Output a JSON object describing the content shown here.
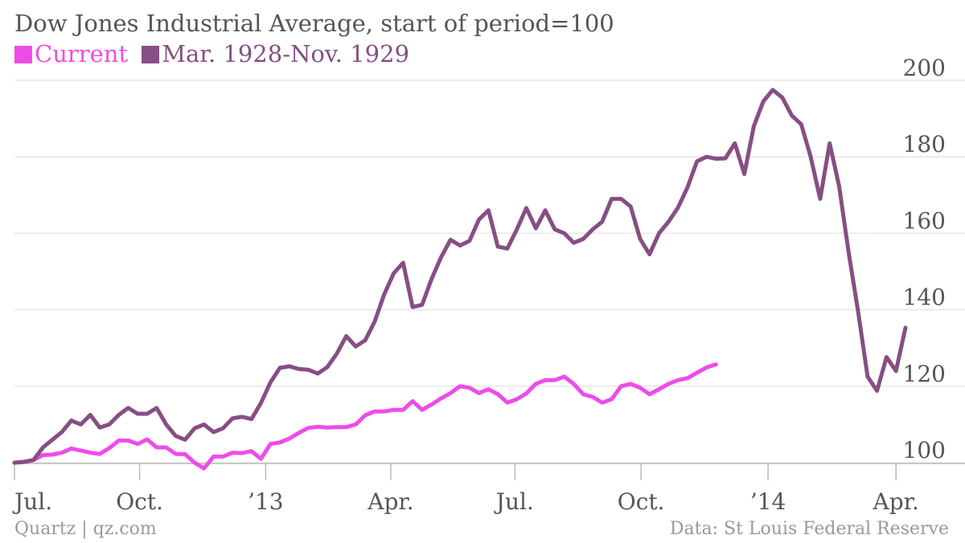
{
  "chart_data": {
    "type": "line",
    "title": "Dow Jones Industrial Average, start of period=100",
    "ylim": [
      100,
      200
    ],
    "yticks": [
      "100",
      "120",
      "140",
      "160",
      "180",
      "200"
    ],
    "xticks": [
      "Jul.",
      "Oct.",
      "’13",
      "Apr.",
      "Jul.",
      "Oct.",
      "’14",
      "Apr."
    ],
    "grid": true,
    "legend_position": "top-left",
    "series": [
      {
        "name": "Current",
        "color": "#ee4ce8",
        "values": [
          100.0,
          100.2,
          100.7,
          102.0,
          102.1,
          102.6,
          103.7,
          103.2,
          102.6,
          102.3,
          103.8,
          105.8,
          105.8,
          104.9,
          106.1,
          104.0,
          104.0,
          102.3,
          102.2,
          100.0,
          98.5,
          101.6,
          101.6,
          102.6,
          102.5,
          103.0,
          101.0,
          104.9,
          105.3,
          106.3,
          107.8,
          109.1,
          109.4,
          109.2,
          109.3,
          109.3,
          110.0,
          112.4,
          113.4,
          113.4,
          113.8,
          113.8,
          116.1,
          113.8,
          115.2,
          116.8,
          118.2,
          120.0,
          119.6,
          118.2,
          119.2,
          117.9,
          115.7,
          116.6,
          118.1,
          120.6,
          121.6,
          121.6,
          122.5,
          120.6,
          117.9,
          117.2,
          115.7,
          116.6,
          120.0,
          120.6,
          119.6,
          117.9,
          119.2,
          120.6,
          121.6,
          122.1,
          123.5,
          124.9,
          125.7
        ]
      },
      {
        "name": "Mar. 1928-Nov. 1929",
        "color": "#874e83",
        "values": [
          100.0,
          100.2,
          100.7,
          104.0,
          106.0,
          108.0,
          111.0,
          110.0,
          112.5,
          109.2,
          110.0,
          112.5,
          114.3,
          112.8,
          112.8,
          114.3,
          110.0,
          107.0,
          106.0,
          109.0,
          110.0,
          108.0,
          109.0,
          111.6,
          112.0,
          111.4,
          115.6,
          121.0,
          124.8,
          125.2,
          124.5,
          124.3,
          123.3,
          125.0,
          128.5,
          133.1,
          130.4,
          132.0,
          136.9,
          144.0,
          149.5,
          152.3,
          140.7,
          141.3,
          148.0,
          153.7,
          158.3,
          156.8,
          158.0,
          163.6,
          166.0,
          156.5,
          156.0,
          161.0,
          166.6,
          161.3,
          166.0,
          161.0,
          160.0,
          157.5,
          158.5,
          161.0,
          163.0,
          169.0,
          169.0,
          167.0,
          158.5,
          154.5,
          160.0,
          163.0,
          166.7,
          172.0,
          178.8,
          180.0,
          179.5,
          179.6,
          183.5,
          175.5,
          188.0,
          194.5,
          197.5,
          195.5,
          190.8,
          188.5,
          180.0,
          169.0,
          183.5,
          172.3,
          155.0,
          139.5,
          122.5,
          118.8,
          127.6,
          124.0,
          135.3
        ]
      }
    ]
  },
  "footer": {
    "source_left": "Quartz | qz.com",
    "source_right": "Data: St Louis Federal Reserve"
  }
}
